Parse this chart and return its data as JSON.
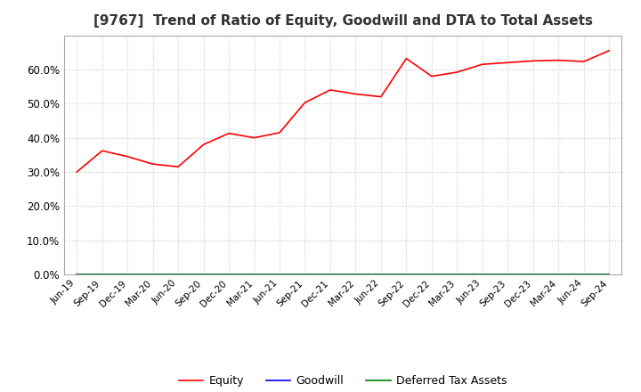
{
  "title": "[9767]  Trend of Ratio of Equity, Goodwill and DTA to Total Assets",
  "title_fontsize": 11,
  "x_labels": [
    "Jun-19",
    "Sep-19",
    "Dec-19",
    "Mar-20",
    "Jun-20",
    "Sep-20",
    "Dec-20",
    "Mar-21",
    "Jun-21",
    "Sep-21",
    "Dec-21",
    "Mar-22",
    "Jun-22",
    "Sep-22",
    "Dec-22",
    "Mar-23",
    "Jun-23",
    "Sep-23",
    "Dec-23",
    "Mar-24",
    "Jun-24",
    "Sep-24"
  ],
  "equity": [
    0.3,
    0.362,
    0.345,
    0.323,
    0.315,
    0.38,
    0.413,
    0.4,
    0.415,
    0.503,
    0.54,
    0.528,
    0.52,
    0.632,
    0.58,
    0.592,
    0.615,
    0.62,
    0.625,
    0.627,
    0.623,
    0.655
  ],
  "goodwill": [
    0.0,
    0.0,
    0.0,
    0.0,
    0.0,
    0.0,
    0.0,
    0.0,
    0.0,
    0.0,
    0.0,
    0.0,
    0.0,
    0.0,
    0.0,
    0.0,
    0.0,
    0.0,
    0.0,
    0.0,
    0.0,
    0.0
  ],
  "dta": [
    0.0,
    0.0,
    0.0,
    0.0,
    0.0,
    0.0,
    0.0,
    0.0,
    0.0,
    0.0,
    0.0,
    0.0,
    0.0,
    0.0,
    0.0,
    0.0,
    0.0,
    0.0,
    0.0,
    0.0,
    0.0,
    0.0
  ],
  "equity_color": "#ff0000",
  "goodwill_color": "#0000ff",
  "dta_color": "#008000",
  "ylim": [
    0.0,
    0.7
  ],
  "yticks": [
    0.0,
    0.1,
    0.2,
    0.3,
    0.4,
    0.5,
    0.6
  ],
  "bg_color": "#ffffff",
  "plot_bg_color": "#ffffff",
  "grid_color": "#c8c8c8",
  "legend_labels": [
    "Equity",
    "Goodwill",
    "Deferred Tax Assets"
  ]
}
